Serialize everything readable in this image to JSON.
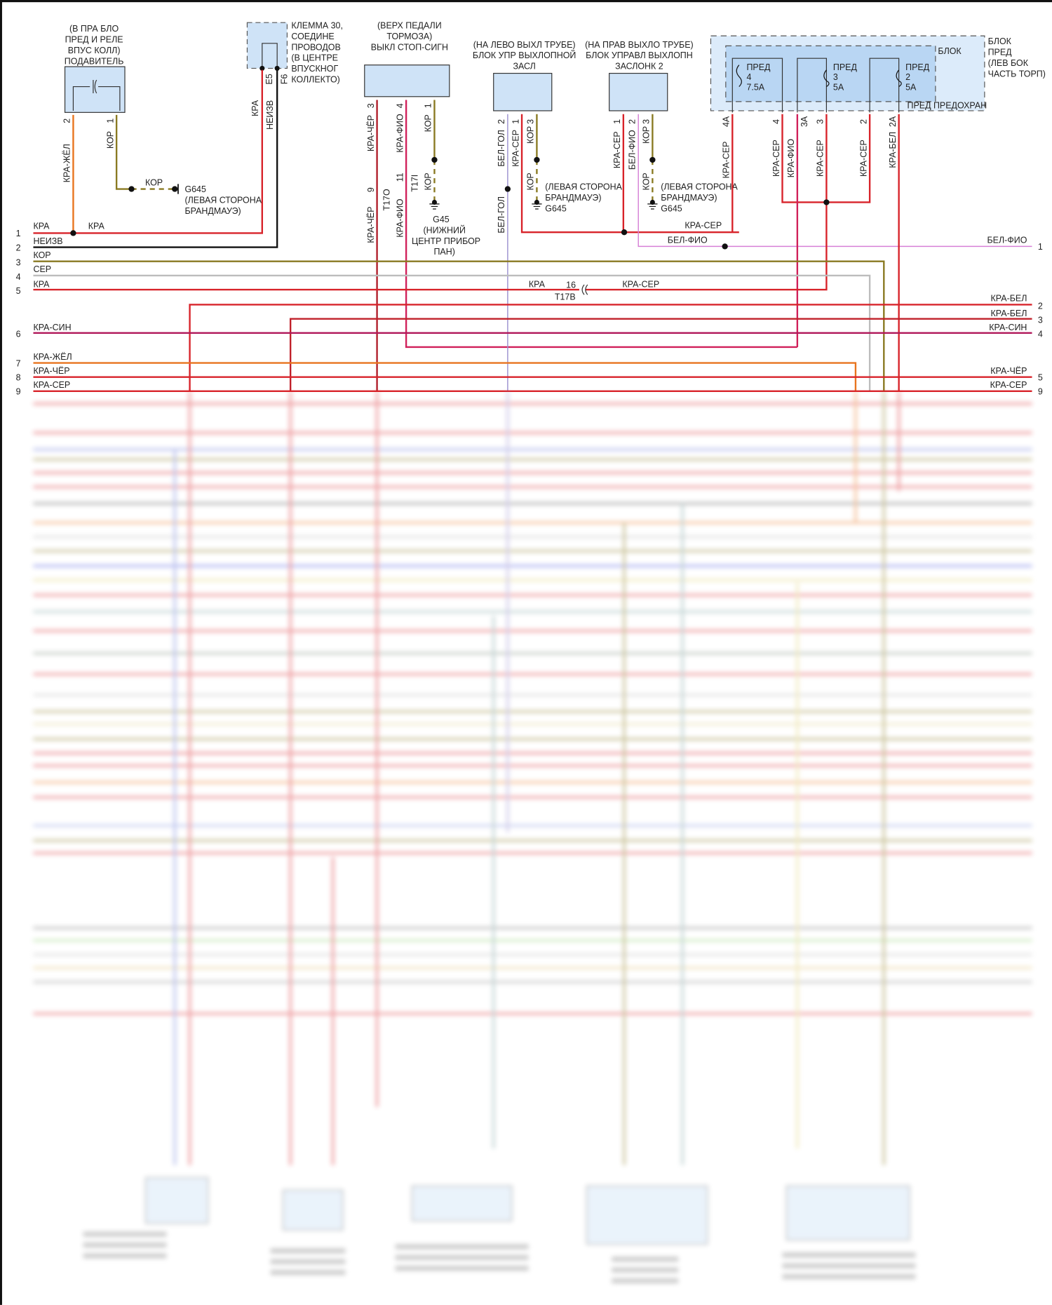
{
  "components": {
    "suppressor": {
      "lines": [
        "(В ПРА БЛО",
        "ПРЕД И РЕЛЕ",
        "ВПУС КОЛЛ)",
        "ПОДАВИТЕЛЬ"
      ],
      "pins": [
        "2",
        "1"
      ]
    },
    "terminal30": {
      "lines": [
        "КЛЕММА 30,",
        "СОЕДИНЕ",
        "ПРОВОДОВ",
        "(В ЦЕНТРЕ",
        "ВПУСКНОГ",
        "КОЛЛЕКТО)"
      ],
      "pins": [
        "E5",
        "F6"
      ]
    },
    "brake_switch": {
      "lines": [
        "(ВЕРХ ПЕДАЛИ",
        "ТОРМОЗА)",
        "ВЫКЛ СТОП-СИГН"
      ],
      "pins": [
        "3",
        "4",
        "1"
      ]
    },
    "exhaust_flap_1": {
      "lines": [
        "(НА ЛЕВО ВЫХЛ ТРУБЕ)",
        "БЛОК УПР ВЫХЛОПНОЙ",
        "ЗАСЛ"
      ],
      "pins": [
        "2",
        "1",
        "3"
      ]
    },
    "exhaust_flap_2": {
      "lines": [
        "(НА ПРАВ ВЫХЛО ТРУБЕ)",
        "БЛОК УПРАВЛ ВЫХЛОПН",
        "ЗАСЛОНК 2"
      ],
      "pins": [
        "1",
        "2",
        "3"
      ]
    },
    "fuse_block": {
      "inner_title": [
        "БЛОК",
        "ПРЕД ПРЕДОХРАН"
      ],
      "location": [
        "БЛОК",
        "ПРЕД",
        "(ЛЕВ БОК",
        "ЧАСТЬ ТОРП)"
      ],
      "fuses": [
        {
          "name": "ПРЕД",
          "number": "4",
          "rating": "7.5A"
        },
        {
          "name": "ПРЕД",
          "number": "3",
          "rating": "5A"
        },
        {
          "name": "ПРЕД",
          "number": "2",
          "rating": "5A"
        }
      ],
      "pins": [
        "4A",
        "4",
        "3A",
        "3",
        "2",
        "2A"
      ]
    }
  },
  "grounds": {
    "g645": "G645",
    "g645_location": [
      "(ЛЕВАЯ СТОРОНА",
      "БРАНДМАУЭ)"
    ],
    "g45": "G45",
    "g45_location": [
      "(НИЖНИЙ",
      "ЦЕНТР ПРИБОР",
      "ПАН)"
    ]
  },
  "connectors": {
    "t17o": "T17O",
    "t17o_pin": "9",
    "t17i": "T17I",
    "t17i_pin": "11",
    "t17b": "T17B",
    "t17b_pin": "16"
  },
  "wire_labels": {
    "kra_zhel": "КРА-ЖЁЛ",
    "kor": "КОР",
    "kra": "КРА",
    "neizv": "НЕИЗВ",
    "kra_cher": "КРА-ЧЁР",
    "kra_fio": "КРА-ФИО",
    "bel_gol": "БЕЛ-ГОЛ",
    "kra_ser": "КРА-СЕР",
    "bel_fio": "БЕЛ-ФИО",
    "kra_bel": "КРА-БЕЛ"
  },
  "left_rows": [
    {
      "num": "1",
      "label": "КРА"
    },
    {
      "num": "2",
      "label": "НЕИЗВ"
    },
    {
      "num": "3",
      "label": "КОР"
    },
    {
      "num": "4",
      "label": "СЕР"
    },
    {
      "num": "5",
      "label": "КРА"
    },
    {
      "num": "6",
      "label": "КРА-СИН"
    },
    {
      "num": "7",
      "label": "КРА-ЖЁЛ"
    },
    {
      "num": "8",
      "label": "КРА-ЧЁР"
    },
    {
      "num": "9",
      "label": "КРА-СЕР"
    }
  ],
  "right_rows": [
    {
      "num": "1",
      "label": "БЕЛ-ФИО"
    },
    {
      "num": "2",
      "label": "КРА-БЕЛ"
    },
    {
      "num": "3",
      "label": "КРА-БЕЛ"
    },
    {
      "num": "4",
      "label": "КРА-СИН"
    },
    {
      "num": "5",
      "label": "КРА-ЧЁР"
    },
    {
      "num": "9",
      "label": "КРА-СЕР"
    }
  ],
  "colors": {
    "red": "#d8232a",
    "dark_red": "#a8282e",
    "orange": "#e8741e",
    "olive": "#8a7a22",
    "gray": "#bdbdbd",
    "lilac": "#9a8fd0",
    "pink_violet": "#d680d6",
    "red_blue": "#b0185a",
    "black": "#111111",
    "component_fill": "#cfe3f7"
  }
}
